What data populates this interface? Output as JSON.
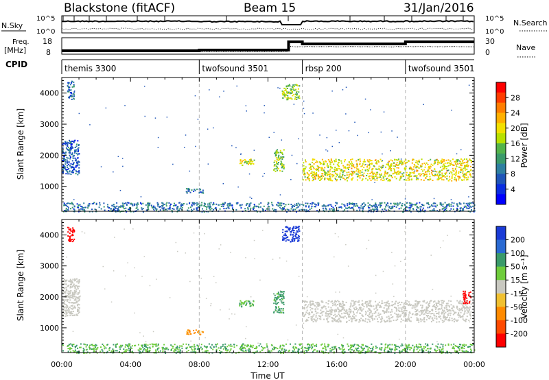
{
  "header": {
    "station": "Blackstone (fitACF)",
    "beam": "Beam 15",
    "date": "31/Jan/2016"
  },
  "top_panels": {
    "nsky_label": "N.Sky",
    "nsearch_label": "N.Search",
    "noise_ticks": [
      "10^5",
      "10^0"
    ],
    "freq_label_1": "Freq.",
    "freq_label_2": "[MHz]",
    "freq_ticks": [
      "18",
      "8"
    ],
    "nave_label": "Nave",
    "nave_ticks": [
      "30",
      "0"
    ],
    "cpid_label": "CPID"
  },
  "cpid_segments": [
    {
      "label": "themis 3300",
      "start": 0,
      "end": 8
    },
    {
      "label": "twofsound 3501",
      "start": 8,
      "end": 14
    },
    {
      "label": "rbsp 200",
      "start": 14,
      "end": 20
    },
    {
      "label": "twofsound 3501",
      "start": 20,
      "end": 24
    }
  ],
  "axes": {
    "ylabel": "Slant Range [km]",
    "yticks": [
      "4000",
      "3000",
      "2000",
      "1000"
    ],
    "xticks": [
      "00:00",
      "04:00",
      "08:00",
      "12:00",
      "16:00",
      "20:00",
      "00:00"
    ],
    "xlabel": "Time UT"
  },
  "power_bar": {
    "label": "Power [dB]",
    "ticks": [
      "28",
      "24",
      "20",
      "16",
      "12",
      "8",
      "4"
    ],
    "colors": [
      "#ff0000",
      "#ff3c00",
      "#ff7d00",
      "#ffb000",
      "#f2e000",
      "#b8e000",
      "#53b34a",
      "#3a9a6a",
      "#2e7fa0",
      "#1f55b8",
      "#0a2de0",
      "#0000ff"
    ]
  },
  "velocity_bar": {
    "label": "Velocity [m s⁻¹]",
    "ticks": [
      "200",
      "100",
      "50",
      "15",
      "-15",
      "-50",
      "-100",
      "-200"
    ],
    "colors": [
      "#1a3bd6",
      "#2a6ad2",
      "#3a9a6a",
      "#6fcc3c",
      "#c8c8c0",
      "#f0c030",
      "#ff8a00",
      "#ff4a00",
      "#ff0000"
    ]
  },
  "chart_data": {
    "type": "heatmap",
    "x_unit": "hours UT",
    "xlim": [
      0,
      24
    ],
    "ylim": [
      200,
      4500
    ],
    "grid_vlines_hours": [
      8,
      14,
      20
    ],
    "power_features": [
      {
        "hours": [
          0.0,
          1.0
        ],
        "range_km": [
          1400,
          2500
        ],
        "power_db": 6
      },
      {
        "hours": [
          0.3,
          0.7
        ],
        "range_km": [
          3800,
          4400
        ],
        "power_db": 8
      },
      {
        "hours": [
          7.2,
          8.2
        ],
        "range_km": [
          800,
          950
        ],
        "power_db": 8
      },
      {
        "hours": [
          10.3,
          11.2
        ],
        "range_km": [
          1700,
          1900
        ],
        "power_db": 18
      },
      {
        "hours": [
          12.3,
          12.9
        ],
        "range_km": [
          1500,
          2200
        ],
        "power_db": 16
      },
      {
        "hours": [
          12.8,
          13.8
        ],
        "range_km": [
          3800,
          4300
        ],
        "power_db": 16
      },
      {
        "hours": [
          14.0,
          23.8
        ],
        "range_km": [
          1200,
          1900
        ],
        "power_db": 20
      },
      {
        "hours": [
          0.0,
          24.0
        ],
        "range_km": [
          200,
          500
        ],
        "power_db": 8
      }
    ],
    "velocity_features": [
      {
        "hours": [
          0.3,
          0.7
        ],
        "range_km": [
          3800,
          4300
        ],
        "velocity_ms": -220
      },
      {
        "hours": [
          0.0,
          1.0
        ],
        "range_km": [
          1400,
          2600
        ],
        "velocity_ms": 0
      },
      {
        "hours": [
          7.2,
          8.2
        ],
        "range_km": [
          800,
          950
        ],
        "velocity_ms": -40
      },
      {
        "hours": [
          10.3,
          11.2
        ],
        "range_km": [
          1700,
          1900
        ],
        "velocity_ms": 30
      },
      {
        "hours": [
          12.3,
          12.9
        ],
        "range_km": [
          1500,
          2200
        ],
        "velocity_ms": 40
      },
      {
        "hours": [
          12.8,
          13.8
        ],
        "range_km": [
          3800,
          4300
        ],
        "velocity_ms": 200
      },
      {
        "hours": [
          14.0,
          23.8
        ],
        "range_km": [
          1200,
          1900
        ],
        "velocity_ms": 0
      },
      {
        "hours": [
          23.3,
          23.8
        ],
        "range_km": [
          1800,
          2200
        ],
        "velocity_ms": -200
      },
      {
        "hours": [
          0.0,
          24.0
        ],
        "range_km": [
          200,
          500
        ],
        "velocity_ms": 30
      }
    ]
  }
}
